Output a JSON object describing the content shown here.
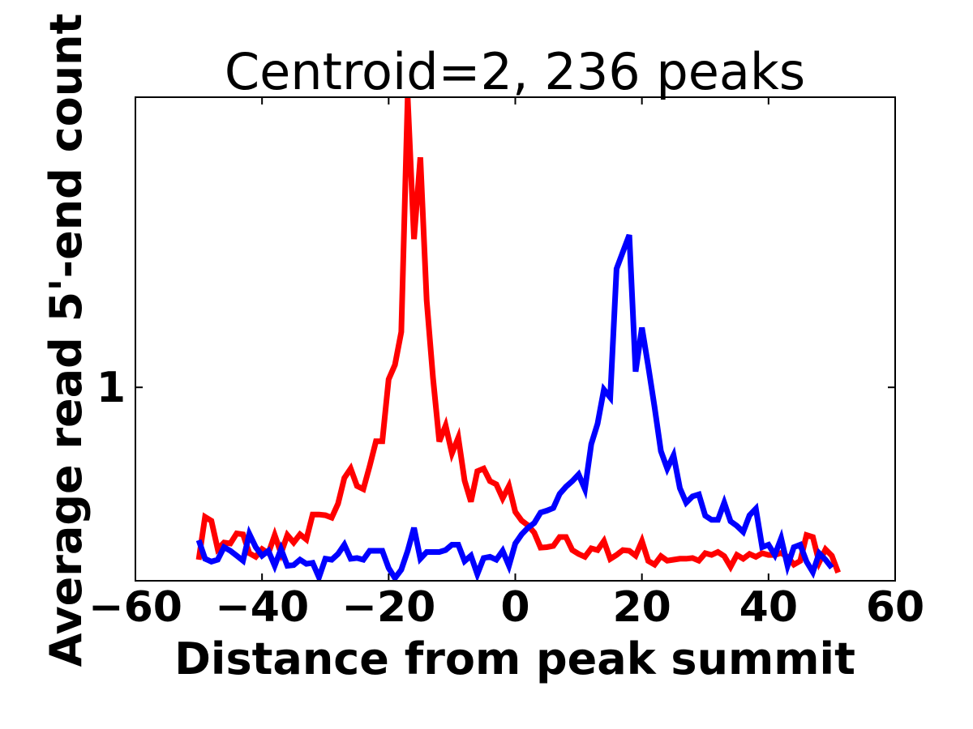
{
  "chart_data": {
    "type": "line",
    "title": "Centroid=2, 236 peaks",
    "xlabel": "Distance from peak summit",
    "ylabel": "Average read 5'-end count",
    "xlim": [
      -60,
      60
    ],
    "ylim": [
      0.2,
      2.2
    ],
    "xticks": [
      -60,
      -40,
      -20,
      0,
      20,
      40,
      60
    ],
    "xtick_labels": [
      "−60",
      "−40",
      "−20",
      "0",
      "20",
      "40",
      "60"
    ],
    "yticks": [
      1
    ],
    "ytick_labels": [
      "1"
    ],
    "grid": false,
    "legend": "none",
    "series": [
      {
        "color": "#ff0000",
        "points": [
          [
            -50,
            0.287
          ],
          [
            -49,
            0.464
          ],
          [
            -48,
            0.448
          ],
          [
            -47,
            0.331
          ],
          [
            -46,
            0.358
          ],
          [
            -45,
            0.354
          ],
          [
            -44,
            0.396
          ],
          [
            -43,
            0.392
          ],
          [
            -42,
            0.314
          ],
          [
            -41,
            0.299
          ],
          [
            -40,
            0.331
          ],
          [
            -39,
            0.314
          ],
          [
            -38,
            0.389
          ],
          [
            -37,
            0.314
          ],
          [
            -36,
            0.389
          ],
          [
            -35,
            0.358
          ],
          [
            -34,
            0.392
          ],
          [
            -33,
            0.371
          ],
          [
            -32,
            0.474
          ],
          [
            -31,
            0.474
          ],
          [
            -30,
            0.471
          ],
          [
            -29,
            0.461
          ],
          [
            -28,
            0.519
          ],
          [
            -27,
            0.625
          ],
          [
            -26,
            0.664
          ],
          [
            -25,
            0.592
          ],
          [
            -24,
            0.579
          ],
          [
            -23,
            0.674
          ],
          [
            -22,
            0.777
          ],
          [
            -21,
            0.777
          ],
          [
            -20,
            1.033
          ],
          [
            -19,
            1.093
          ],
          [
            -18,
            1.229
          ],
          [
            -17,
            2.2
          ],
          [
            -16,
            1.613
          ],
          [
            -15,
            1.951
          ],
          [
            -14,
            1.36
          ],
          [
            -13,
            1.04
          ],
          [
            -12,
            0.776
          ],
          [
            -11,
            0.842
          ],
          [
            -10,
            0.727
          ],
          [
            -9,
            0.792
          ],
          [
            -8,
            0.614
          ],
          [
            -7,
            0.527
          ],
          [
            -6,
            0.653
          ],
          [
            -5,
            0.664
          ],
          [
            -4,
            0.612
          ],
          [
            -3,
            0.599
          ],
          [
            -2,
            0.541
          ],
          [
            -1,
            0.592
          ],
          [
            0,
            0.485
          ],
          [
            1,
            0.449
          ],
          [
            2,
            0.429
          ],
          [
            3,
            0.399
          ],
          [
            4,
            0.337
          ],
          [
            5,
            0.339
          ],
          [
            6,
            0.344
          ],
          [
            7,
            0.381
          ],
          [
            8,
            0.381
          ],
          [
            9,
            0.327
          ],
          [
            10,
            0.311
          ],
          [
            11,
            0.299
          ],
          [
            12,
            0.334
          ],
          [
            13,
            0.327
          ],
          [
            14,
            0.364
          ],
          [
            15,
            0.29
          ],
          [
            16,
            0.307
          ],
          [
            17,
            0.327
          ],
          [
            18,
            0.324
          ],
          [
            19,
            0.304
          ],
          [
            20,
            0.364
          ],
          [
            21,
            0.282
          ],
          [
            22,
            0.267
          ],
          [
            23,
            0.302
          ],
          [
            24,
            0.283
          ],
          [
            25,
            0.287
          ],
          [
            26,
            0.291
          ],
          [
            27,
            0.291
          ],
          [
            28,
            0.294
          ],
          [
            29,
            0.283
          ],
          [
            30,
            0.314
          ],
          [
            31,
            0.307
          ],
          [
            32,
            0.319
          ],
          [
            33,
            0.302
          ],
          [
            34,
            0.258
          ],
          [
            35,
            0.307
          ],
          [
            36,
            0.291
          ],
          [
            37,
            0.311
          ],
          [
            38,
            0.299
          ],
          [
            39,
            0.314
          ],
          [
            40,
            0.307
          ],
          [
            41,
            0.307
          ],
          [
            42,
            0.315
          ],
          [
            43,
            0.299
          ],
          [
            44,
            0.267
          ],
          [
            45,
            0.282
          ],
          [
            46,
            0.389
          ],
          [
            47,
            0.381
          ],
          [
            48,
            0.276
          ],
          [
            49,
            0.33
          ],
          [
            50,
            0.304
          ],
          [
            51,
            0.234
          ]
        ]
      },
      {
        "color": "#0000ff",
        "points": [
          [
            -50,
            0.368
          ],
          [
            -49,
            0.291
          ],
          [
            -48,
            0.279
          ],
          [
            -47,
            0.287
          ],
          [
            -46,
            0.339
          ],
          [
            -45,
            0.324
          ],
          [
            -44,
            0.304
          ],
          [
            -43,
            0.283
          ],
          [
            -42,
            0.394
          ],
          [
            -41,
            0.339
          ],
          [
            -40,
            0.304
          ],
          [
            -39,
            0.324
          ],
          [
            -38,
            0.262
          ],
          [
            -37,
            0.331
          ],
          [
            -36,
            0.262
          ],
          [
            -35,
            0.265
          ],
          [
            -34,
            0.287
          ],
          [
            -33,
            0.27
          ],
          [
            -32,
            0.274
          ],
          [
            -31,
            0.214
          ],
          [
            -30,
            0.291
          ],
          [
            -29,
            0.287
          ],
          [
            -28,
            0.311
          ],
          [
            -27,
            0.349
          ],
          [
            -26,
            0.291
          ],
          [
            -25,
            0.294
          ],
          [
            -24,
            0.287
          ],
          [
            -23,
            0.324
          ],
          [
            -22,
            0.324
          ],
          [
            -21,
            0.324
          ],
          [
            -20,
            0.253
          ],
          [
            -19,
            0.211
          ],
          [
            -18,
            0.246
          ],
          [
            -17,
            0.324
          ],
          [
            -16,
            0.419
          ],
          [
            -15,
            0.291
          ],
          [
            -14,
            0.319
          ],
          [
            -13,
            0.319
          ],
          [
            -12,
            0.319
          ],
          [
            -11,
            0.327
          ],
          [
            -10,
            0.349
          ],
          [
            -9,
            0.349
          ],
          [
            -8,
            0.281
          ],
          [
            -7,
            0.304
          ],
          [
            -6,
            0.227
          ],
          [
            -5,
            0.294
          ],
          [
            -4,
            0.299
          ],
          [
            -3,
            0.287
          ],
          [
            -2,
            0.324
          ],
          [
            -1,
            0.262
          ],
          [
            0,
            0.354
          ],
          [
            1,
            0.392
          ],
          [
            2,
            0.419
          ],
          [
            3,
            0.439
          ],
          [
            4,
            0.482
          ],
          [
            5,
            0.49
          ],
          [
            6,
            0.501
          ],
          [
            7,
            0.559
          ],
          [
            8,
            0.589
          ],
          [
            9,
            0.612
          ],
          [
            10,
            0.64
          ],
          [
            11,
            0.579
          ],
          [
            12,
            0.765
          ],
          [
            13,
            0.85
          ],
          [
            14,
            0.991
          ],
          [
            15,
            0.958
          ],
          [
            16,
            1.49
          ],
          [
            17,
            1.56
          ],
          [
            18,
            1.63
          ],
          [
            19,
            1.065
          ],
          [
            20,
            1.247
          ],
          [
            21,
            1.087
          ],
          [
            22,
            0.918
          ],
          [
            23,
            0.736
          ],
          [
            24,
            0.664
          ],
          [
            25,
            0.719
          ],
          [
            26,
            0.583
          ],
          [
            27,
            0.523
          ],
          [
            28,
            0.549
          ],
          [
            29,
            0.557
          ],
          [
            30,
            0.469
          ],
          [
            31,
            0.452
          ],
          [
            32,
            0.452
          ],
          [
            33,
            0.523
          ],
          [
            34,
            0.446
          ],
          [
            35,
            0.427
          ],
          [
            36,
            0.402
          ],
          [
            37,
            0.471
          ],
          [
            38,
            0.498
          ],
          [
            39,
            0.339
          ],
          [
            40,
            0.349
          ],
          [
            41,
            0.307
          ],
          [
            42,
            0.376
          ],
          [
            43,
            0.262
          ],
          [
            44,
            0.339
          ],
          [
            45,
            0.349
          ],
          [
            46,
            0.279
          ],
          [
            47,
            0.236
          ],
          [
            48,
            0.314
          ],
          [
            49,
            0.287
          ],
          [
            50,
            0.254
          ]
        ]
      }
    ]
  }
}
